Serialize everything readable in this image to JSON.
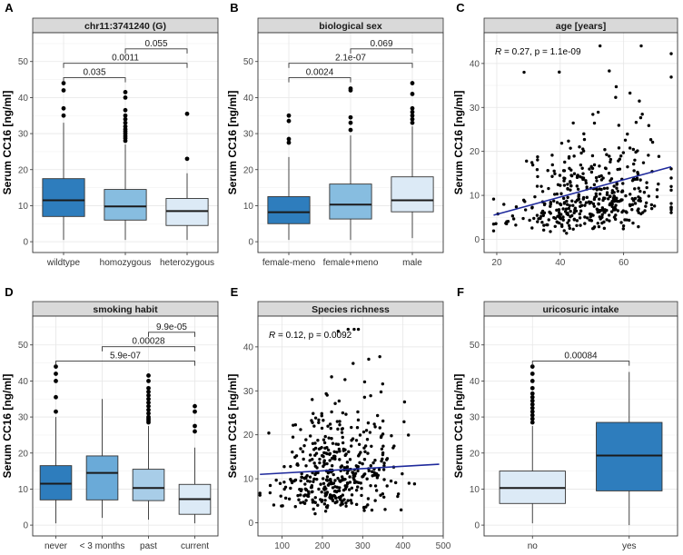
{
  "figure": {
    "y_axis_label": "Serum CC16 [ng/ml]"
  },
  "chart_data": [
    {
      "panel_letter": "A",
      "type": "box",
      "title": "chr11:3741240 (G)",
      "ylabel": "Serum CC16 [ng/ml]",
      "ylim": [
        -3,
        58
      ],
      "yticks": [
        0,
        10,
        20,
        30,
        40,
        50
      ],
      "categories": [
        "wildtype",
        "homozygous",
        "heterozygous"
      ],
      "colors": [
        "#2e7dbd",
        "#87bde0",
        "#dceaf6"
      ],
      "boxes": [
        {
          "min": 0.5,
          "q1": 7,
          "median": 11.5,
          "q3": 17.5,
          "max": 33,
          "outliers": [
            35,
            37,
            42,
            44
          ]
        },
        {
          "min": 0.5,
          "q1": 6,
          "median": 9.8,
          "q3": 14.5,
          "max": 27,
          "outliers": [
            28,
            28.7,
            29.3,
            30,
            30.6,
            31.2,
            32,
            33,
            34,
            35,
            36.5,
            40,
            41.5
          ]
        },
        {
          "min": 0.5,
          "q1": 4.5,
          "median": 8.5,
          "q3": 12,
          "max": 19,
          "outliers": [
            23,
            35.5
          ]
        }
      ],
      "brackets": [
        {
          "from": 0,
          "to": 1,
          "y": 45.5,
          "label": "0.035"
        },
        {
          "from": 0,
          "to": 2,
          "y": 49.5,
          "label": "0.0011"
        },
        {
          "from": 1,
          "to": 2,
          "y": 53.5,
          "label": "0.055"
        }
      ]
    },
    {
      "panel_letter": "B",
      "type": "box",
      "title": "biological sex",
      "ylabel": "Serum CC16 [ng/ml]",
      "ylim": [
        -3,
        58
      ],
      "yticks": [
        0,
        10,
        20,
        30,
        40,
        50
      ],
      "categories": [
        "female-meno",
        "female+meno",
        "male"
      ],
      "colors": [
        "#2e7dbd",
        "#87bde0",
        "#dceaf6"
      ],
      "boxes": [
        {
          "min": 0.5,
          "q1": 5,
          "median": 8.2,
          "q3": 12.5,
          "max": 23.5,
          "outliers": [
            27.5,
            28.5,
            33.5,
            35
          ]
        },
        {
          "min": 0.5,
          "q1": 6.3,
          "median": 10.3,
          "q3": 16,
          "max": 29.5,
          "outliers": [
            31,
            33,
            34.5,
            42,
            42.5
          ]
        },
        {
          "min": 1,
          "q1": 8.3,
          "median": 11.5,
          "q3": 18,
          "max": 32,
          "outliers": [
            33,
            34,
            35,
            36,
            37,
            41,
            44
          ]
        }
      ],
      "brackets": [
        {
          "from": 0,
          "to": 1,
          "y": 45.5,
          "label": "0.0024"
        },
        {
          "from": 0,
          "to": 2,
          "y": 49.5,
          "label": "2.1e-07"
        },
        {
          "from": 1,
          "to": 2,
          "y": 53.5,
          "label": "0.069"
        }
      ]
    },
    {
      "panel_letter": "C",
      "type": "scatter",
      "title": "age [years]",
      "ylabel": "Serum CC16 [ng/ml]",
      "ylim": [
        -3,
        47
      ],
      "yticks": [
        0,
        10,
        20,
        30,
        40
      ],
      "xlim": [
        16,
        77
      ],
      "xticks": [
        20,
        40,
        60
      ],
      "annotation_r": "R",
      "annotation_text": " = 0.27, p = 1.1e-09",
      "trend": {
        "x": [
          19,
          75
        ],
        "y": [
          5.5,
          16.5
        ]
      },
      "seed": 11,
      "n_points": 440,
      "point_model": {
        "x_mean": 50,
        "x_sd": 12,
        "x_min": 19,
        "x_max": 75,
        "y_median": 9.5,
        "y_sigma": 0.6,
        "y_slope": 0.014,
        "y_max": 44
      }
    },
    {
      "panel_letter": "D",
      "type": "box",
      "title": "smoking habit",
      "ylabel": "Serum CC16 [ng/ml]",
      "ylim": [
        -3,
        58
      ],
      "yticks": [
        0,
        10,
        20,
        30,
        40,
        50
      ],
      "categories": [
        "never",
        "< 3 months",
        "past",
        "current"
      ],
      "colors": [
        "#2e7dbd",
        "#6aaad8",
        "#a8cde8",
        "#dceaf6"
      ],
      "boxes": [
        {
          "min": 0.5,
          "q1": 7,
          "median": 11.5,
          "q3": 16.5,
          "max": 30,
          "outliers": [
            31.5,
            35.5,
            40,
            42,
            44
          ]
        },
        {
          "min": 2,
          "q1": 7,
          "median": 14.5,
          "q3": 19.2,
          "max": 35,
          "outliers": []
        },
        {
          "min": 1.5,
          "q1": 6.8,
          "median": 10.3,
          "q3": 15.5,
          "max": 27.5,
          "outliers": [
            28.5,
            29,
            29.5,
            30,
            31,
            32,
            33,
            34,
            35,
            36,
            37,
            38,
            40,
            41.5
          ]
        },
        {
          "min": 0.5,
          "q1": 3,
          "median": 7.2,
          "q3": 11.3,
          "max": 21.5,
          "outliers": [
            26,
            27.5,
            31.5,
            33
          ]
        }
      ],
      "brackets": [
        {
          "from": 0,
          "to": 3,
          "y": 45.5,
          "label": "5.9e-07"
        },
        {
          "from": 1,
          "to": 3,
          "y": 49.5,
          "label": "0.00028"
        },
        {
          "from": 2,
          "to": 3,
          "y": 53.5,
          "label": "9.9e-05"
        }
      ]
    },
    {
      "panel_letter": "E",
      "type": "scatter",
      "title": "Species richness",
      "ylabel": "Serum CC16 [ng/ml]",
      "ylim": [
        -3,
        47
      ],
      "yticks": [
        0,
        10,
        20,
        30,
        40
      ],
      "xlim": [
        40,
        500
      ],
      "xticks": [
        100,
        200,
        300,
        400,
        500
      ],
      "annotation_r": "R",
      "annotation_text": " = 0.12, p = 0.0092",
      "trend": {
        "x": [
          45,
          490
        ],
        "y": [
          11,
          13.3
        ]
      },
      "seed": 29,
      "n_points": 440,
      "point_model": {
        "x_mean": 230,
        "x_sd": 70,
        "x_min": 45,
        "x_max": 470,
        "y_median": 11,
        "y_sigma": 0.55,
        "y_slope": 0.0007,
        "y_max": 44
      }
    },
    {
      "panel_letter": "F",
      "type": "box",
      "title": "uricosuric intake",
      "ylabel": "Serum CC16 [ng/ml]",
      "ylim": [
        -3,
        58
      ],
      "yticks": [
        0,
        10,
        20,
        30,
        40,
        50
      ],
      "categories": [
        "no",
        "yes"
      ],
      "colors": [
        "#dceaf6",
        "#2e7dbd"
      ],
      "boxes": [
        {
          "min": 0.5,
          "q1": 6,
          "median": 10.3,
          "q3": 15,
          "max": 27.5,
          "outliers": [
            28.5,
            29.5,
            30.5,
            31.5,
            32.5,
            33.5,
            34.5,
            35.5,
            36.5,
            38,
            40,
            42,
            44
          ]
        },
        {
          "min": 0,
          "q1": 9.5,
          "median": 19.3,
          "q3": 28.5,
          "max": 42.5,
          "outliers": []
        }
      ],
      "brackets": [
        {
          "from": 0,
          "to": 1,
          "y": 45.5,
          "label": "0.00084"
        }
      ]
    }
  ]
}
